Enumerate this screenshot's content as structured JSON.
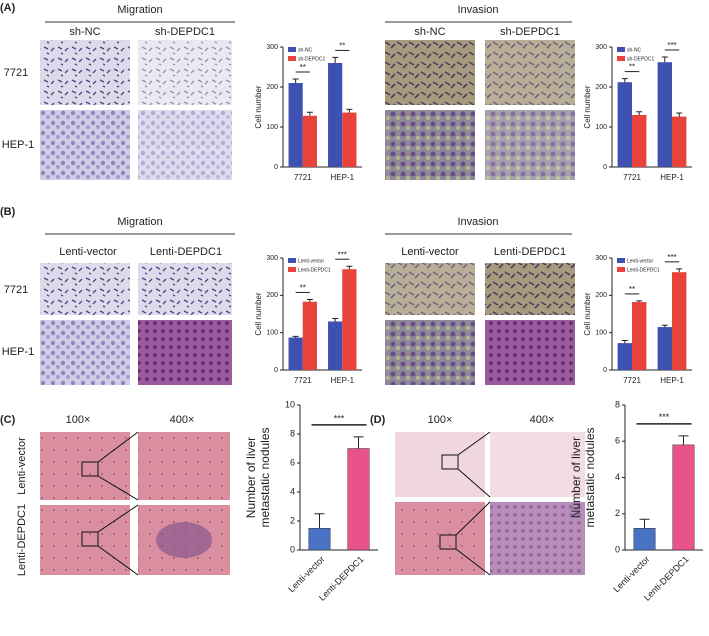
{
  "panels": [
    {
      "label": "(A)",
      "groups": [
        {
          "title": "Migration",
          "columns": [
            "sh-NC",
            "sh-DEPDC1"
          ]
        },
        {
          "title": "Invasion",
          "columns": [
            "sh-NC",
            "sh-DEPDC1"
          ]
        }
      ],
      "rows": [
        "7721",
        "HEP-1"
      ]
    },
    {
      "label": "(B)",
      "groups": [
        {
          "title": "Migration",
          "columns": [
            "Lenti-vector",
            "Lenti-DEPDC1"
          ]
        },
        {
          "title": "Invasion",
          "columns": [
            "Lenti-vector",
            "Lenti-DEPDC1"
          ]
        }
      ],
      "rows": [
        "7721",
        "HEP-1"
      ]
    },
    {
      "label": "(C)",
      "columns": [
        "100×",
        "400×"
      ],
      "rows": [
        "Lenti-vector",
        "Lenti-DEPDC1"
      ]
    },
    {
      "label": "(D)",
      "columns": [
        "100×",
        "400×"
      ]
    }
  ],
  "chart_data": [
    {
      "type": "bar",
      "y_label": "Cell number",
      "categories": [
        "7721",
        "HEP-1"
      ],
      "series": [
        {
          "name": "sh-NC",
          "color": "#3f51b0",
          "values": [
            210,
            260
          ],
          "errors": [
            10,
            14
          ]
        },
        {
          "name": "sh-DEPDC1",
          "color": "#e8433b",
          "values": [
            128,
            136
          ],
          "errors": [
            9,
            8
          ]
        }
      ],
      "annotations": [
        "**",
        "**"
      ],
      "ylim": [
        0,
        300
      ],
      "yticks": [
        0,
        100,
        200,
        300
      ],
      "legend": "upper left"
    },
    {
      "type": "bar",
      "y_label": "Cell number",
      "categories": [
        "7721",
        "HEP-1"
      ],
      "series": [
        {
          "name": "sh-NC",
          "color": "#3f51b0",
          "values": [
            212,
            262
          ],
          "errors": [
            9,
            13
          ]
        },
        {
          "name": "sh-DEPDC1",
          "color": "#e8433b",
          "values": [
            130,
            126
          ],
          "errors": [
            8,
            9
          ]
        }
      ],
      "annotations": [
        "**",
        "***"
      ],
      "ylim": [
        0,
        300
      ],
      "yticks": [
        0,
        100,
        200,
        300
      ],
      "legend": "upper left"
    },
    {
      "type": "bar",
      "y_label": "Cell number",
      "categories": [
        "7721",
        "HEP-1"
      ],
      "series": [
        {
          "name": "Lenti-vector",
          "color": "#3f51b0",
          "values": [
            87,
            130
          ],
          "errors": [
            3,
            8
          ]
        },
        {
          "name": "Lenti-DEPDC1",
          "color": "#e8433b",
          "values": [
            183,
            270
          ],
          "errors": [
            6,
            8
          ]
        }
      ],
      "annotations": [
        "**",
        "***"
      ],
      "ylim": [
        0,
        300
      ],
      "yticks": [
        0,
        100,
        200,
        300
      ],
      "legend": "upper left"
    },
    {
      "type": "bar",
      "y_label": "Cell number",
      "categories": [
        "7721",
        "HEP-1"
      ],
      "series": [
        {
          "name": "Lenti-vector",
          "color": "#3f51b0",
          "values": [
            72,
            115
          ],
          "errors": [
            7,
            5
          ]
        },
        {
          "name": "Lenti-DEPDC1",
          "color": "#e8433b",
          "values": [
            182,
            262
          ],
          "errors": [
            3,
            9
          ]
        }
      ],
      "annotations": [
        "**",
        "***"
      ],
      "ylim": [
        0,
        300
      ],
      "yticks": [
        0,
        100,
        200,
        300
      ],
      "legend": "upper left"
    },
    {
      "type": "bar",
      "y_label": [
        "Number of liver",
        "metastatic nodules"
      ],
      "categories": [
        "Lenti-vector",
        "Lenti-DEPDC1"
      ],
      "values": [
        1.5,
        7
      ],
      "errors": [
        1,
        0.8
      ],
      "colors": [
        "#4a72c4",
        "#e8538a"
      ],
      "annotations": [
        "***"
      ],
      "ylim": [
        0,
        10
      ],
      "yticks": [
        0,
        2,
        4,
        6,
        8,
        10
      ]
    },
    {
      "type": "bar",
      "y_label": [
        "Number of liver",
        "metastatic nodules"
      ],
      "categories": [
        "Lenti-vector",
        "Lenti-DEPDC1"
      ],
      "values": [
        1.2,
        5.8
      ],
      "errors": [
        0.5,
        0.5
      ],
      "colors": [
        "#4a72c4",
        "#e8538a"
      ],
      "annotations": [
        "***"
      ],
      "ylim": [
        0,
        8
      ],
      "yticks": [
        0,
        2,
        4,
        6,
        8
      ]
    }
  ]
}
